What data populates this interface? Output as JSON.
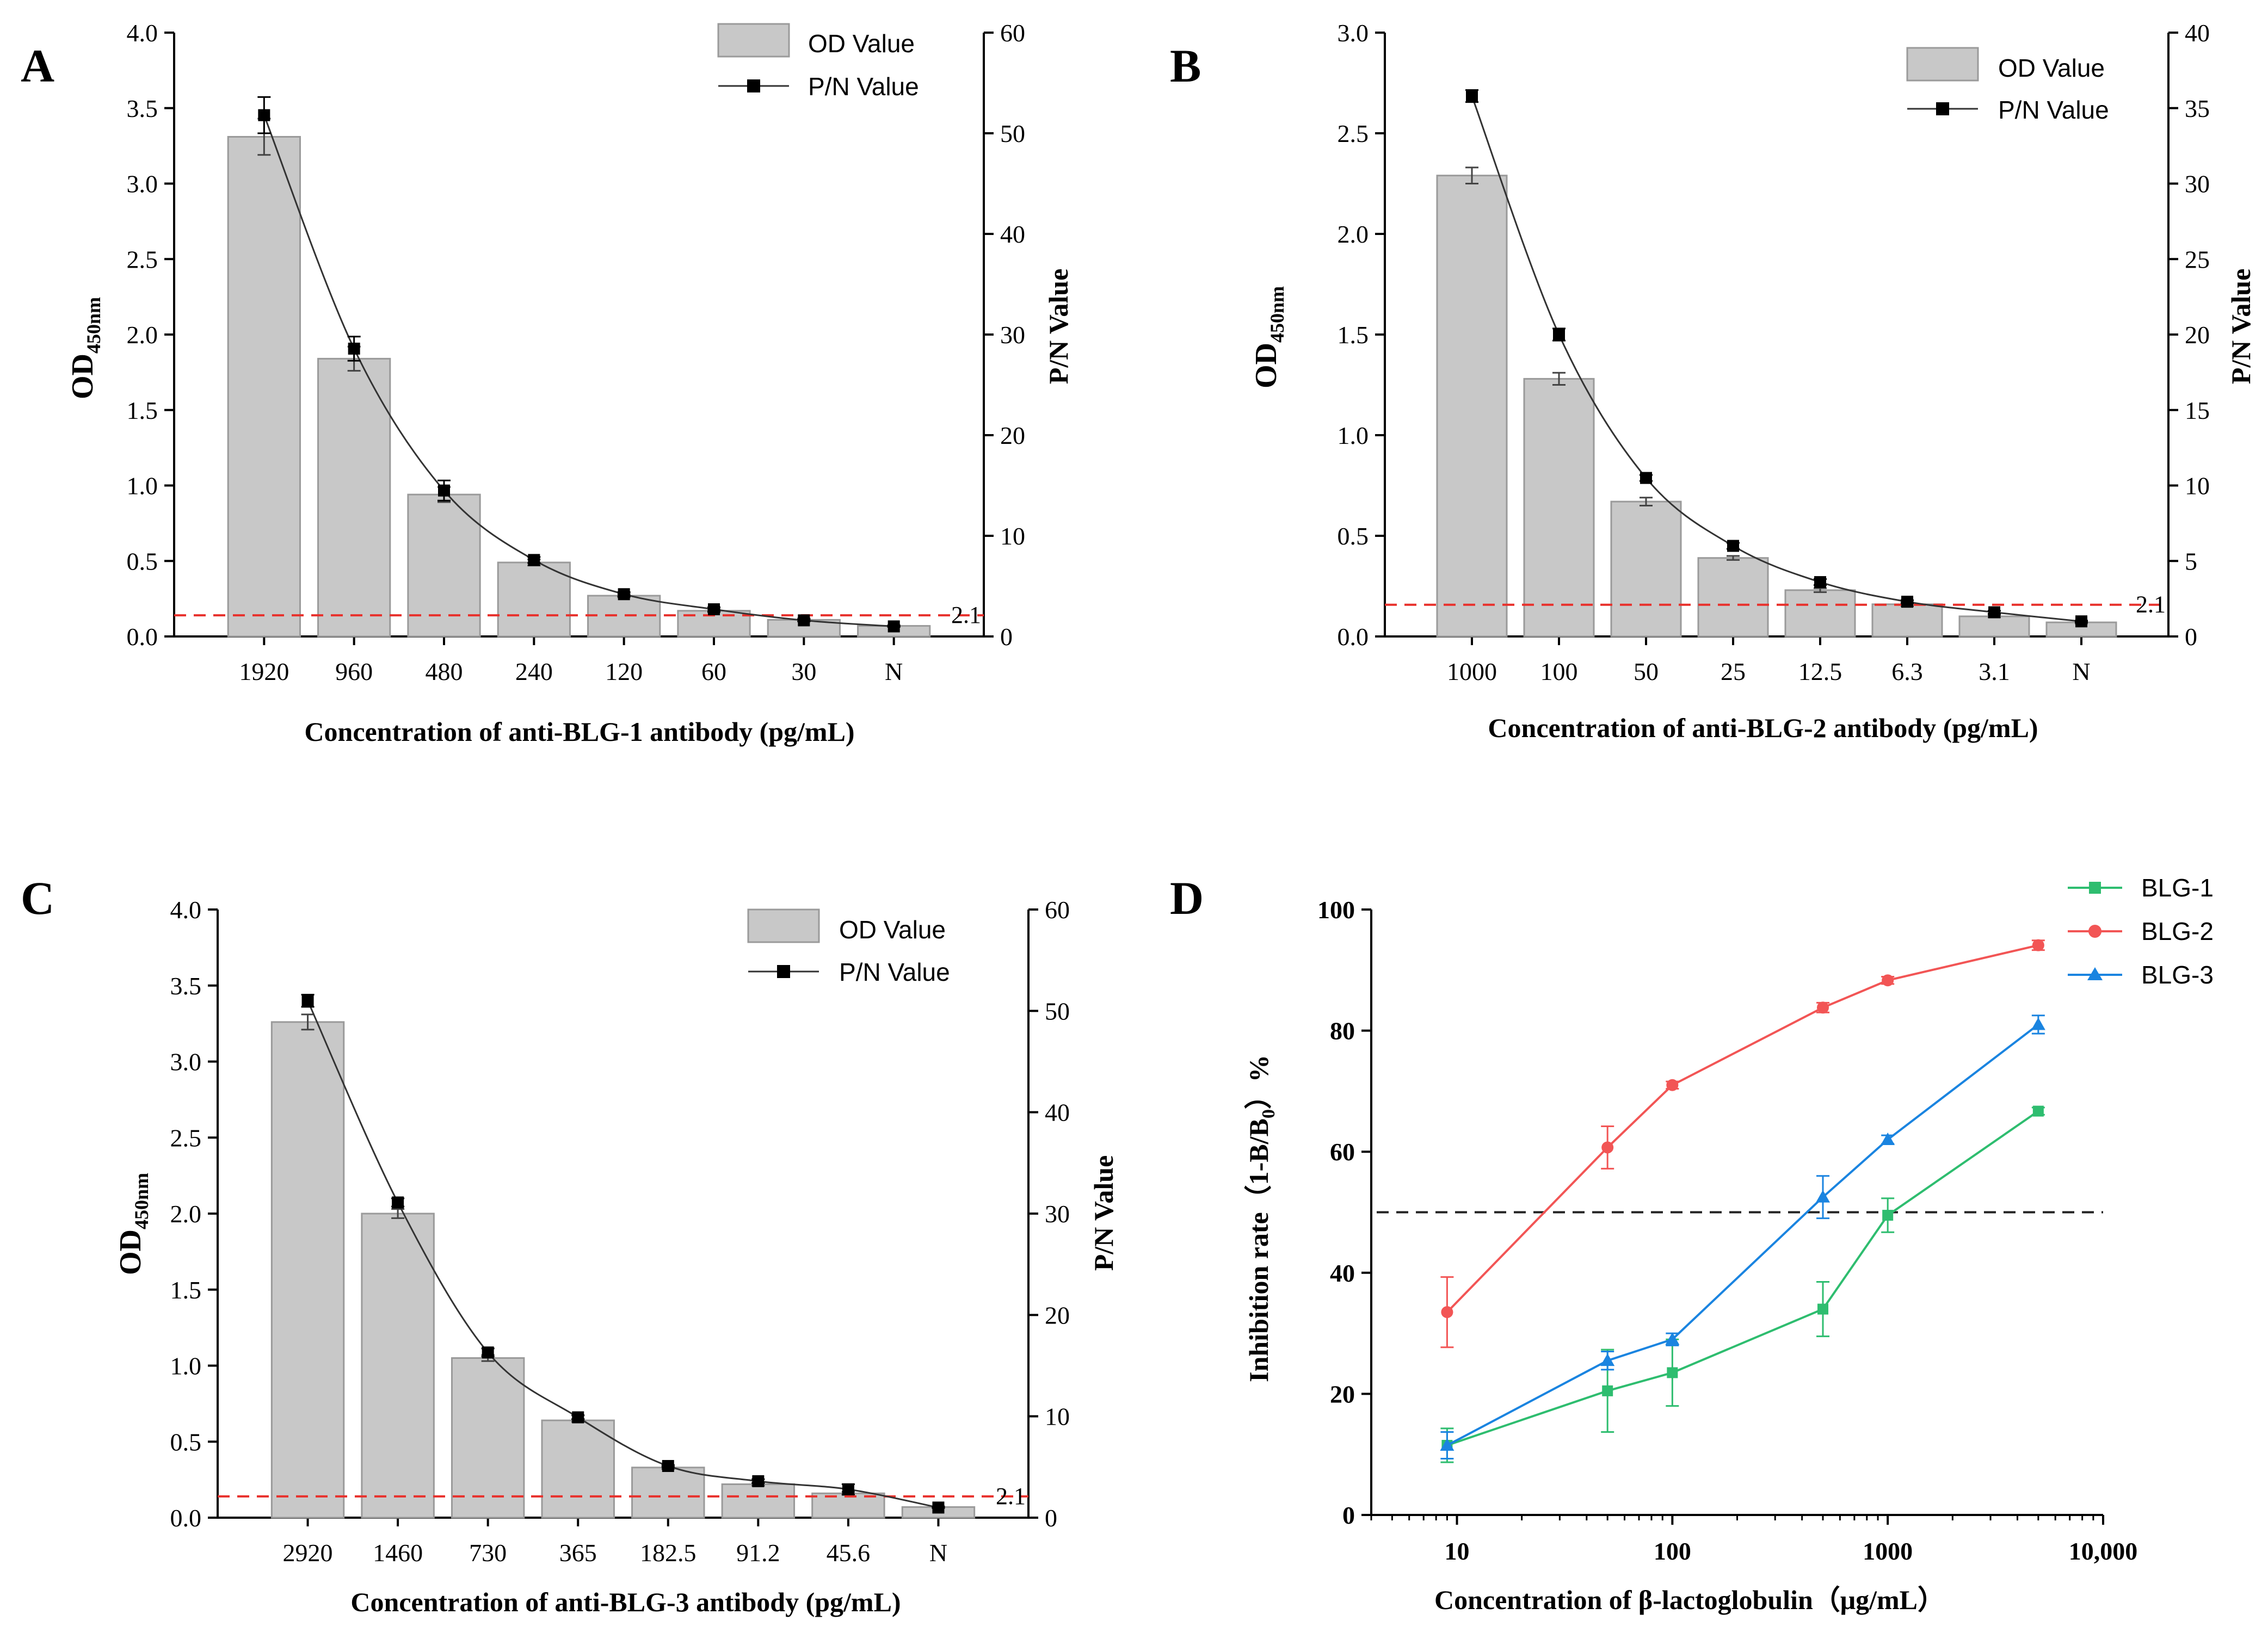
{
  "figure": {
    "colors": {
      "bar": "#c8c8c8",
      "bar_edge": "#9a9a9a",
      "line": "#333333",
      "marker": "#000000",
      "cutoff": "#e8312c",
      "half": "#222222",
      "BLG-1": "#2ebd6f",
      "BLG-2": "#f25555",
      "BLG-3": "#1a84e0"
    }
  },
  "chart_data": [
    {
      "panel": "A",
      "type": "bar+line",
      "categories": [
        "1920",
        "960",
        "480",
        "240",
        "120",
        "60",
        "30",
        "N"
      ],
      "series": [
        {
          "name": "OD Value",
          "axis": "left",
          "values": [
            3.31,
            1.84,
            0.94,
            0.49,
            0.27,
            0.17,
            0.11,
            0.07
          ],
          "errors": [
            0.12,
            0.08,
            0.05,
            0.02,
            0.01,
            0.01,
            0.01,
            0.005
          ]
        },
        {
          "name": "P/N Value",
          "axis": "right",
          "values": [
            51.8,
            28.6,
            14.5,
            7.6,
            4.2,
            2.7,
            1.6,
            1.0
          ],
          "errors": [
            1.8,
            1.2,
            1.0,
            0.3,
            0.2,
            0.2,
            0.1,
            0.05
          ]
        }
      ],
      "cutoff": 2.1,
      "cutoff_label": "2.1",
      "ylabel_main": "OD",
      "ylabel_sub": "450nm",
      "y2label": "P/N  Value",
      "xlabel": "Concentration of anti-BLG-1 antibody (pg/mL)",
      "ylim": [
        0,
        4.0
      ],
      "y2lim": [
        0,
        60
      ],
      "yticks": [
        "0.0",
        "0.5",
        "1.0",
        "1.5",
        "2.0",
        "2.5",
        "3.0",
        "3.5",
        "4.0"
      ],
      "y2ticks": [
        "0",
        "10",
        "20",
        "30",
        "40",
        "50",
        "60"
      ],
      "legend": "top-right"
    },
    {
      "panel": "B",
      "type": "bar+line",
      "categories": [
        "1000",
        "100",
        "50",
        "25",
        "12.5",
        "6.3",
        "3.1",
        "N"
      ],
      "series": [
        {
          "name": "OD Value",
          "axis": "left",
          "values": [
            2.29,
            1.28,
            0.67,
            0.39,
            0.23,
            0.16,
            0.1,
            0.07
          ],
          "errors": [
            0.04,
            0.03,
            0.02,
            0.01,
            0.01,
            0.01,
            0.005,
            0.005
          ]
        },
        {
          "name": "P/N Value",
          "axis": "right",
          "values": [
            35.8,
            20.0,
            10.5,
            6.0,
            3.6,
            2.3,
            1.6,
            1.0
          ],
          "errors": [
            0.4,
            0.4,
            0.2,
            0.2,
            0.2,
            0.1,
            0.1,
            0.05
          ]
        }
      ],
      "cutoff": 2.1,
      "cutoff_label": "2.1",
      "ylabel_main": "OD",
      "ylabel_sub": "450nm",
      "y2label": "P/N Value",
      "xlabel": "Concentration of anti-BLG-2 antibody (pg/mL)",
      "ylim": [
        0,
        3.0
      ],
      "y2lim": [
        0,
        40
      ],
      "yticks": [
        "0.0",
        "0.5",
        "1.0",
        "1.5",
        "2.0",
        "2.5",
        "3.0"
      ],
      "y2ticks": [
        "0",
        "5",
        "10",
        "15",
        "20",
        "25",
        "30",
        "35",
        "40"
      ],
      "legend": "top-right"
    },
    {
      "panel": "C",
      "type": "bar+line",
      "categories": [
        "2920",
        "1460",
        "730",
        "365",
        "182.5",
        "91.2",
        "45.6",
        "N"
      ],
      "series": [
        {
          "name": "OD Value",
          "axis": "left",
          "values": [
            3.26,
            2.0,
            1.05,
            0.64,
            0.33,
            0.22,
            0.16,
            0.07
          ],
          "errors": [
            0.05,
            0.03,
            0.02,
            0.01,
            0.01,
            0.01,
            0.01,
            0.005
          ]
        },
        {
          "name": "P/N Value",
          "axis": "right",
          "values": [
            51.0,
            31.1,
            16.3,
            9.9,
            5.1,
            3.6,
            2.8,
            1.0
          ],
          "errors": [
            0.6,
            0.4,
            0.4,
            0.2,
            0.1,
            0.2,
            0.5,
            0.05
          ]
        }
      ],
      "cutoff": 2.1,
      "cutoff_label": "2.1",
      "ylabel_main": "OD",
      "ylabel_sub": "450nm",
      "y2label": "P/N Value",
      "xlabel": "Concentration of anti-BLG-3 antibody (pg/mL)",
      "ylim": [
        0,
        4.0
      ],
      "y2lim": [
        0,
        60
      ],
      "yticks": [
        "0.0",
        "0.5",
        "1.0",
        "1.5",
        "2.0",
        "2.5",
        "3.0",
        "3.5",
        "4.0"
      ],
      "y2ticks": [
        "0",
        "10",
        "20",
        "30",
        "40",
        "50",
        "60"
      ],
      "legend": "top-right"
    },
    {
      "panel": "D",
      "type": "line",
      "x": [
        9,
        50,
        100,
        500,
        1000,
        5000
      ],
      "xscale": "log",
      "xlim": [
        4,
        10000
      ],
      "xticks": [
        10,
        100,
        1000,
        10000
      ],
      "xticklabels": [
        "10",
        "100",
        "1000",
        "10,000"
      ],
      "ylim": [
        0,
        100
      ],
      "yticks": [
        "0",
        "20",
        "40",
        "60",
        "80",
        "100"
      ],
      "series": [
        {
          "name": "BLG-1",
          "marker": "square",
          "values": [
            11.5,
            20.5,
            23.5,
            34.0,
            49.5,
            66.7
          ],
          "errors": [
            2.8,
            6.8,
            5.5,
            4.5,
            2.8,
            0.6
          ]
        },
        {
          "name": "BLG-2",
          "marker": "circle",
          "values": [
            33.5,
            60.7,
            71.0,
            83.8,
            88.3,
            94.1
          ],
          "errors": [
            5.8,
            3.5,
            0.6,
            0.8,
            0.6,
            0.8
          ]
        },
        {
          "name": "BLG-3",
          "marker": "triangle",
          "values": [
            11.5,
            25.5,
            29.0,
            52.5,
            62.0,
            81.0
          ],
          "errors": [
            2.2,
            1.5,
            1.0,
            3.5,
            0.7,
            1.5
          ]
        }
      ],
      "half_line": 50,
      "ylabel": "Inhibition rate（1-B/B",
      "ylabel_sub": "0",
      "ylabel_tail": "）%",
      "xlabel": "Concentration of β-lactoglobulin（μg/mL）",
      "legend": "top-right"
    }
  ]
}
